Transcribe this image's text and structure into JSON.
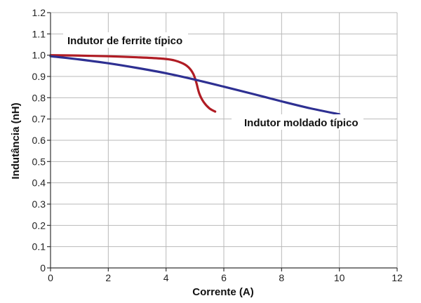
{
  "chart_data": {
    "type": "line",
    "xlabel": "Corrente (A)",
    "ylabel": "Indutância (nH)",
    "xlim": [
      0,
      12
    ],
    "ylim": [
      0,
      1.2
    ],
    "x_ticks": [
      "0",
      "2",
      "4",
      "6",
      "8",
      "10",
      "12"
    ],
    "y_ticks": [
      "0",
      "0.1",
      "0.2",
      "0.3",
      "0.4",
      "0.5",
      "0.6",
      "0.7",
      "0.8",
      "0.9",
      "1.0",
      "1.1",
      "1.2"
    ],
    "grid": true,
    "series": [
      {
        "name": "Indutor de ferrite típico",
        "color": "#b01c24",
        "x": [
          0,
          1,
          2,
          3,
          3.5,
          4,
          4.3,
          4.6,
          4.8,
          4.95,
          5.05,
          5.15,
          5.3,
          5.5,
          5.7
        ],
        "y": [
          1.0,
          0.998,
          0.995,
          0.99,
          0.987,
          0.982,
          0.975,
          0.96,
          0.94,
          0.91,
          0.87,
          0.82,
          0.78,
          0.75,
          0.735
        ]
      },
      {
        "name": "Indutor moldado típico",
        "color": "#2e3092",
        "x": [
          0,
          1,
          2,
          3,
          4,
          5,
          6,
          7,
          8,
          9,
          10
        ],
        "y": [
          0.995,
          0.98,
          0.962,
          0.94,
          0.915,
          0.885,
          0.852,
          0.818,
          0.783,
          0.75,
          0.722
        ]
      }
    ],
    "annotations": [
      {
        "text": "Indutor de ferrite típico",
        "series": 0
      },
      {
        "text": "Indutor moldado típico",
        "series": 1
      }
    ]
  }
}
